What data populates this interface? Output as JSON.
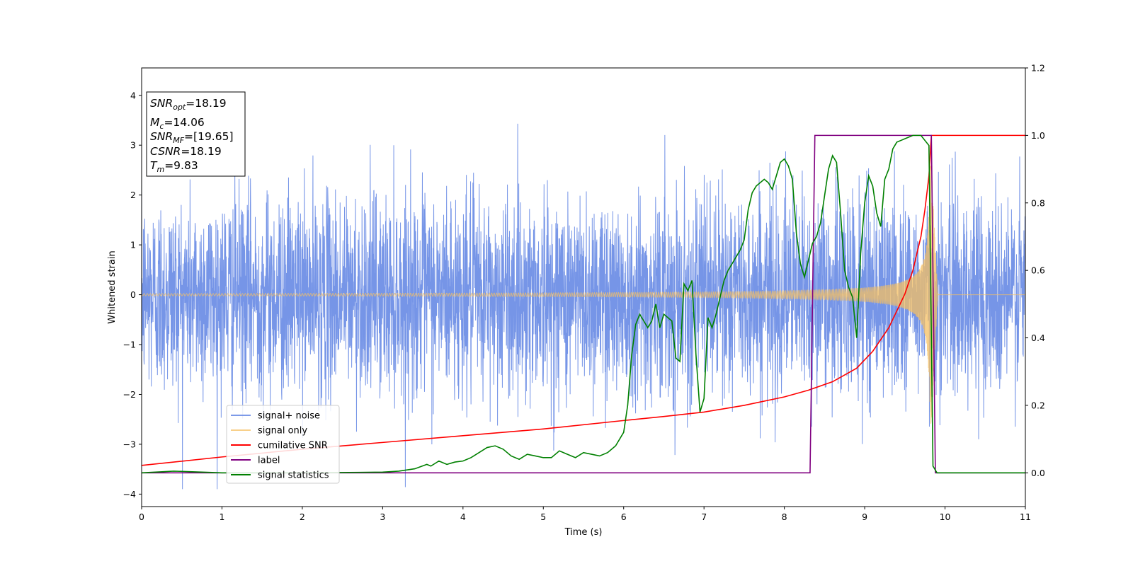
{
  "chart_data": {
    "type": "line",
    "title": "",
    "xlabel": "Time (s)",
    "ylabel": "Whitened strain",
    "xlim": [
      0,
      11
    ],
    "ylim": [
      -4.25,
      4.55
    ],
    "y2lim": [
      -0.1,
      1.2
    ],
    "xticks": [
      "0",
      "1",
      "2",
      "3",
      "4",
      "5",
      "6",
      "7",
      "8",
      "9",
      "10",
      "11"
    ],
    "yticks": [
      "−4",
      "−3",
      "−2",
      "−1",
      "0",
      "1",
      "2",
      "3",
      "4"
    ],
    "y2ticks": [
      "0.0",
      "0.2",
      "0.4",
      "0.6",
      "0.8",
      "1.0",
      "1.2"
    ],
    "grid": false,
    "legend_placement": "lower-left",
    "info_box": {
      "lines": [
        {
          "var": "SNR",
          "sub": "opt",
          "value": "=18.19"
        },
        {
          "var": "M",
          "sub": "c",
          "value": "=14.06"
        },
        {
          "var": "SNR",
          "sub": "MF",
          "value": "=[19.65]"
        },
        {
          "var": "CSNR",
          "sub": "",
          "value": "=18.19"
        },
        {
          "var": "T",
          "sub": "m",
          "value": "=9.83"
        }
      ]
    },
    "series": [
      {
        "name": "signal+ noise",
        "color": "#6f8fe6",
        "axis": "left",
        "kind": "noise",
        "rms": 1.0,
        "max_abs": 3.9,
        "x_range": [
          0,
          11
        ]
      },
      {
        "name": "signal only",
        "color": "#f5c063",
        "axis": "left",
        "kind": "chirp",
        "merger_time": 9.83,
        "peak_amplitude": 2.6
      },
      {
        "name": "cumilative SNR",
        "color": "#ff0000",
        "axis": "right",
        "x": [
          0,
          1,
          2,
          3,
          4,
          5,
          6,
          6.5,
          7,
          7.5,
          8,
          8.3,
          8.6,
          8.9,
          9.1,
          9.3,
          9.5,
          9.6,
          9.7,
          9.75,
          9.8,
          9.83,
          9.85,
          11
        ],
        "y": [
          0.022,
          0.047,
          0.07,
          0.09,
          0.11,
          0.13,
          0.155,
          0.167,
          0.18,
          0.2,
          0.225,
          0.245,
          0.27,
          0.31,
          0.36,
          0.43,
          0.53,
          0.6,
          0.7,
          0.78,
          0.88,
          1.0,
          1.0,
          1.0
        ]
      },
      {
        "name": "label",
        "color": "#800080",
        "axis": "right",
        "x": [
          0,
          8.32,
          8.38,
          9.82,
          9.83,
          9.88,
          11
        ],
        "y": [
          0,
          0,
          1.0,
          1.0,
          1.0,
          0,
          0
        ]
      },
      {
        "name": "signal statistics",
        "color": "#008000",
        "axis": "right",
        "x": [
          0,
          0.4,
          1,
          2,
          3,
          3.2,
          3.4,
          3.55,
          3.6,
          3.7,
          3.8,
          3.9,
          4.0,
          4.1,
          4.2,
          4.3,
          4.4,
          4.5,
          4.6,
          4.7,
          4.8,
          4.9,
          5.0,
          5.1,
          5.2,
          5.3,
          5.4,
          5.5,
          5.6,
          5.7,
          5.8,
          5.9,
          6.0,
          6.05,
          6.1,
          6.15,
          6.2,
          6.3,
          6.35,
          6.4,
          6.45,
          6.5,
          6.6,
          6.65,
          6.7,
          6.75,
          6.8,
          6.85,
          6.9,
          6.95,
          7.0,
          7.05,
          7.1,
          7.15,
          7.2,
          7.25,
          7.3,
          7.35,
          7.4,
          7.45,
          7.5,
          7.55,
          7.6,
          7.65,
          7.7,
          7.75,
          7.8,
          7.85,
          7.9,
          7.95,
          8.0,
          8.05,
          8.1,
          8.15,
          8.2,
          8.25,
          8.3,
          8.35,
          8.4,
          8.45,
          8.5,
          8.55,
          8.6,
          8.65,
          8.7,
          8.75,
          8.8,
          8.85,
          8.9,
          8.95,
          9.0,
          9.05,
          9.1,
          9.15,
          9.2,
          9.25,
          9.3,
          9.35,
          9.4,
          9.5,
          9.6,
          9.7,
          9.8,
          9.85,
          9.9,
          10,
          11
        ],
        "y": [
          0,
          0.005,
          0.0,
          0.0,
          0.002,
          0.005,
          0.012,
          0.025,
          0.02,
          0.035,
          0.025,
          0.032,
          0.035,
          0.045,
          0.06,
          0.075,
          0.08,
          0.07,
          0.05,
          0.04,
          0.055,
          0.05,
          0.045,
          0.045,
          0.065,
          0.055,
          0.045,
          0.06,
          0.055,
          0.05,
          0.06,
          0.08,
          0.12,
          0.2,
          0.35,
          0.44,
          0.47,
          0.43,
          0.45,
          0.5,
          0.43,
          0.47,
          0.45,
          0.34,
          0.33,
          0.56,
          0.54,
          0.57,
          0.35,
          0.18,
          0.22,
          0.46,
          0.43,
          0.47,
          0.52,
          0.57,
          0.6,
          0.62,
          0.64,
          0.66,
          0.69,
          0.78,
          0.83,
          0.85,
          0.86,
          0.87,
          0.86,
          0.84,
          0.88,
          0.92,
          0.93,
          0.91,
          0.87,
          0.71,
          0.62,
          0.58,
          0.63,
          0.68,
          0.7,
          0.74,
          0.82,
          0.9,
          0.94,
          0.92,
          0.77,
          0.6,
          0.55,
          0.52,
          0.4,
          0.65,
          0.8,
          0.88,
          0.85,
          0.77,
          0.73,
          0.87,
          0.9,
          0.96,
          0.98,
          0.99,
          1.0,
          1.0,
          0.97,
          0.02,
          0.0,
          0.0,
          0.0
        ]
      }
    ]
  }
}
